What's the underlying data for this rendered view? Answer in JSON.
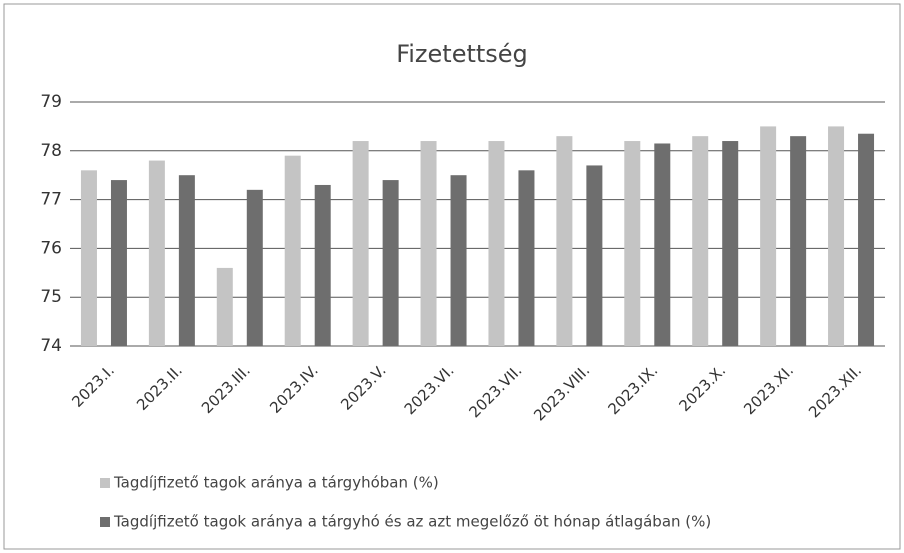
{
  "chart_data": {
    "type": "bar",
    "title": "Fizetettség",
    "categories": [
      "2023.I.",
      "2023.II.",
      "2023.III.",
      "2023.IV.",
      "2023.V.",
      "2023.VI.",
      "2023.VII.",
      "2023.VIII.",
      "2023.IX.",
      "2023.X.",
      "2023.XI.",
      "2023.XII."
    ],
    "series": [
      {
        "name": "Tagdíjfizető tagok aránya a tárgyhóban (%)",
        "color": "#c4c4c4",
        "values": [
          77.6,
          77.8,
          75.6,
          77.9,
          78.2,
          78.2,
          78.2,
          78.3,
          78.2,
          78.3,
          78.5,
          78.5
        ]
      },
      {
        "name": "Tagdíjfizető tagok aránya a tárgyhó és az azt megelőző öt hónap átlagában (%)",
        "color": "#6e6e6e",
        "values": [
          77.4,
          77.5,
          77.2,
          77.3,
          77.4,
          77.5,
          77.6,
          77.7,
          78.15,
          78.2,
          78.3,
          78.35
        ]
      }
    ],
    "ylim": [
      74,
      79
    ],
    "yticks": [
      74,
      75,
      76,
      77,
      78,
      79
    ],
    "grid": true,
    "legend": "bottom"
  }
}
